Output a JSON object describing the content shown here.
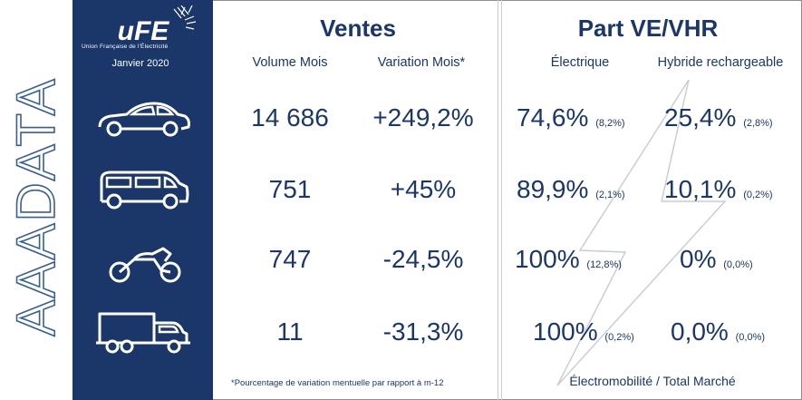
{
  "brand": {
    "vertical_logo_text": "AAADATA",
    "ufe_logo_text": "uFE",
    "ufe_tagline": "Union Française de l'Électricité",
    "date": "Janvier 2020"
  },
  "colors": {
    "navy": "#1b3668",
    "text": "#1b3668",
    "divider": "#c9ced6"
  },
  "ventes": {
    "title": "Ventes",
    "col_volume": "Volume Mois",
    "col_variation": "Variation Mois*",
    "rows": [
      {
        "vehicle": "car-icon",
        "volume": "14 686",
        "variation": "+249,2%"
      },
      {
        "vehicle": "van-icon",
        "volume": "751",
        "variation": "+45%"
      },
      {
        "vehicle": "motorcycle-icon",
        "volume": "747",
        "variation": "-24,5%"
      },
      {
        "vehicle": "truck-icon",
        "volume": "11",
        "variation": "-31,3%"
      }
    ],
    "footnote": "*Pourcentage de variation mentuelle par rapport à m-12"
  },
  "part": {
    "title": "Part VE/VHR",
    "col_electric": "Électrique",
    "col_hybrid": "Hybride rechargeable",
    "rows": [
      {
        "electric": "74,6%",
        "electric_sub": "(8,2%)",
        "hybrid": "25,4%",
        "hybrid_sub": "(2,8%)"
      },
      {
        "electric": "89,9%",
        "electric_sub": "(2,1%)",
        "hybrid": "10,1%",
        "hybrid_sub": "(0,2%)"
      },
      {
        "electric": "100%",
        "electric_sub": "(12,8%)",
        "hybrid": "0%",
        "hybrid_sub": "(0,0%)"
      },
      {
        "electric": "100%",
        "electric_sub": "(0,2%)",
        "hybrid": "0,0%",
        "hybrid_sub": "(0,0%)"
      }
    ],
    "footer": "Électromobilité / Total Marché"
  }
}
